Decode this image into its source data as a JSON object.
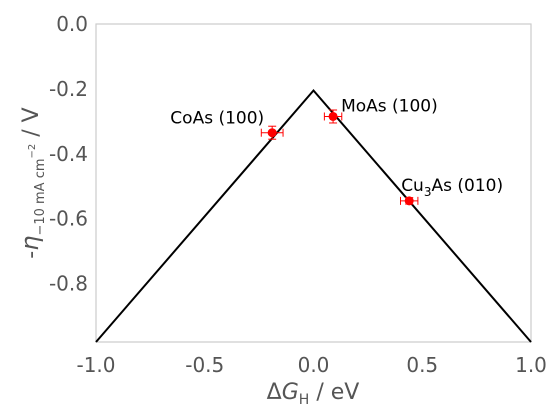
{
  "chart_data": {
    "type": "scatter",
    "xlim": [
      -1.0,
      1.0
    ],
    "ylim": [
      -0.98,
      0.0
    ],
    "x_ticks": [
      "-1.0",
      "-0.5",
      "0.0",
      "0.5",
      "1.0"
    ],
    "x_tick_values": [
      -1.0,
      -0.5,
      0.0,
      0.5,
      1.0
    ],
    "y_ticks": [
      "0.0",
      "-0.2",
      "-0.4",
      "-0.6",
      "-0.8"
    ],
    "y_tick_values": [
      0.0,
      -0.2,
      -0.4,
      -0.6,
      -0.8
    ],
    "xlabel": {
      "prefix": "Δ",
      "symbol": "G",
      "sub": "H",
      "suffix": " / eV"
    },
    "ylabel": {
      "prefix": "-",
      "symbol": "η",
      "sub": "−10 mA cm",
      "sup": "−2",
      "suffix": " / V"
    },
    "volcano_line": [
      [
        -1.0,
        -0.98
      ],
      [
        0.0,
        -0.205
      ],
      [
        1.0,
        -0.98
      ]
    ],
    "line_color": "#000000",
    "marker_color": "#ff0000",
    "points": [
      {
        "label": "CoAs (100)",
        "x": -0.19,
        "y": -0.335,
        "xerr": 0.05,
        "yerr": 0.02
      },
      {
        "label": "MoAs (100)",
        "x": 0.09,
        "y": -0.285,
        "xerr": 0.04,
        "yerr": 0.02
      },
      {
        "label_main": "Cu",
        "label_sub": "3",
        "label_rest": "As (010)",
        "x": 0.44,
        "y": -0.545,
        "xerr": 0.04,
        "yerr": 0.01
      }
    ],
    "grid": false,
    "legend": "none"
  }
}
